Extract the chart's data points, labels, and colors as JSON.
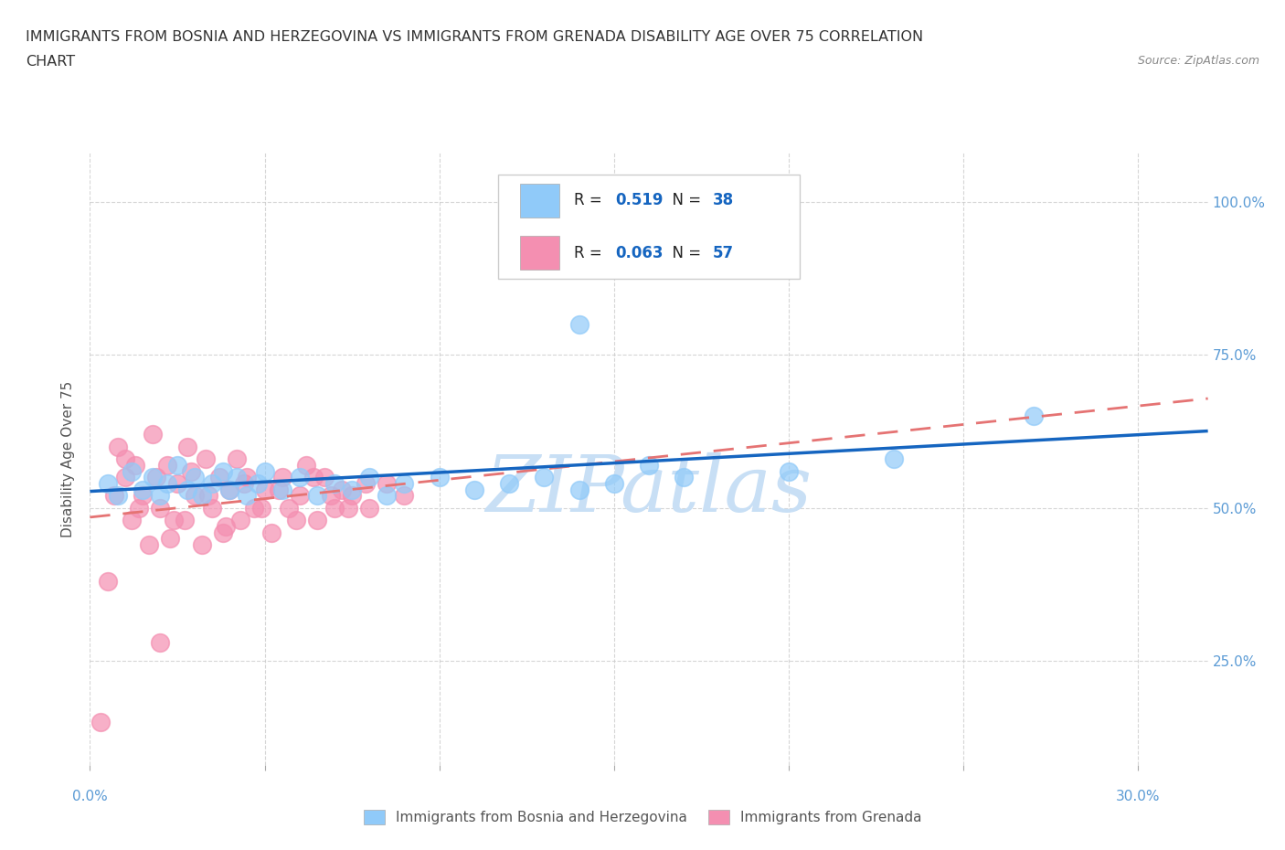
{
  "title_line1": "IMMIGRANTS FROM BOSNIA AND HERZEGOVINA VS IMMIGRANTS FROM GRENADA DISABILITY AGE OVER 75 CORRELATION",
  "title_line2": "CHART",
  "source": "Source: ZipAtlas.com",
  "ylabel": "Disability Age Over 75",
  "xlim": [
    0.0,
    0.32
  ],
  "ylim": [
    0.08,
    1.08
  ],
  "xtick_values": [
    0.0,
    0.05,
    0.1,
    0.15,
    0.2,
    0.25,
    0.3
  ],
  "xtick_edge_labels": [
    "0.0%",
    "30.0%"
  ],
  "ytick_values": [
    0.25,
    0.5,
    0.75,
    1.0
  ],
  "ytick_right_labels": [
    "25.0%",
    "50.0%",
    "75.0%",
    "100.0%"
  ],
  "R_bosnia": "0.519",
  "N_bosnia": "38",
  "R_grenada": "0.063",
  "N_grenada": "57",
  "color_bosnia": "#90CAF9",
  "color_grenada": "#F48FB1",
  "trendline_bosnia_color": "#1565C0",
  "trendline_grenada_color": "#E57373",
  "watermark_text": "ZIPatlas",
  "watermark_color": "#C8DFF5",
  "background_color": "#ffffff",
  "grid_color": "#cccccc",
  "tick_color": "#5B9BD5",
  "legend_label_bosnia": "Immigrants from Bosnia and Herzegovina",
  "legend_label_grenada": "Immigrants from Grenada",
  "bosnia_x": [
    0.005,
    0.008,
    0.012,
    0.015,
    0.018,
    0.02,
    0.022,
    0.025,
    0.028,
    0.03,
    0.032,
    0.035,
    0.038,
    0.04,
    0.042,
    0.045,
    0.048,
    0.05,
    0.055,
    0.06,
    0.065,
    0.07,
    0.075,
    0.08,
    0.085,
    0.09,
    0.1,
    0.11,
    0.12,
    0.13,
    0.14,
    0.15,
    0.17,
    0.2,
    0.23,
    0.27,
    0.14,
    0.16
  ],
  "bosnia_y": [
    0.54,
    0.52,
    0.56,
    0.53,
    0.55,
    0.52,
    0.54,
    0.57,
    0.53,
    0.55,
    0.52,
    0.54,
    0.56,
    0.53,
    0.55,
    0.52,
    0.54,
    0.56,
    0.53,
    0.55,
    0.52,
    0.54,
    0.53,
    0.55,
    0.52,
    0.54,
    0.55,
    0.53,
    0.54,
    0.55,
    0.53,
    0.54,
    0.55,
    0.56,
    0.58,
    0.65,
    0.8,
    0.57
  ],
  "grenada_x": [
    0.003,
    0.005,
    0.007,
    0.008,
    0.01,
    0.012,
    0.013,
    0.015,
    0.017,
    0.018,
    0.02,
    0.022,
    0.023,
    0.025,
    0.027,
    0.028,
    0.03,
    0.032,
    0.033,
    0.035,
    0.037,
    0.038,
    0.04,
    0.042,
    0.043,
    0.045,
    0.047,
    0.05,
    0.052,
    0.055,
    0.057,
    0.06,
    0.062,
    0.065,
    0.067,
    0.07,
    0.072,
    0.075,
    0.08,
    0.085,
    0.09,
    0.01,
    0.014,
    0.019,
    0.024,
    0.029,
    0.034,
    0.039,
    0.044,
    0.049,
    0.054,
    0.059,
    0.064,
    0.069,
    0.074,
    0.079,
    0.02
  ],
  "grenada_y": [
    0.15,
    0.38,
    0.52,
    0.6,
    0.55,
    0.48,
    0.57,
    0.52,
    0.44,
    0.62,
    0.5,
    0.57,
    0.45,
    0.54,
    0.48,
    0.6,
    0.52,
    0.44,
    0.58,
    0.5,
    0.55,
    0.46,
    0.53,
    0.58,
    0.48,
    0.55,
    0.5,
    0.53,
    0.46,
    0.55,
    0.5,
    0.52,
    0.57,
    0.48,
    0.55,
    0.5,
    0.53,
    0.52,
    0.5,
    0.54,
    0.52,
    0.58,
    0.5,
    0.55,
    0.48,
    0.56,
    0.52,
    0.47,
    0.54,
    0.5,
    0.53,
    0.48,
    0.55,
    0.52,
    0.5,
    0.54,
    0.28
  ]
}
